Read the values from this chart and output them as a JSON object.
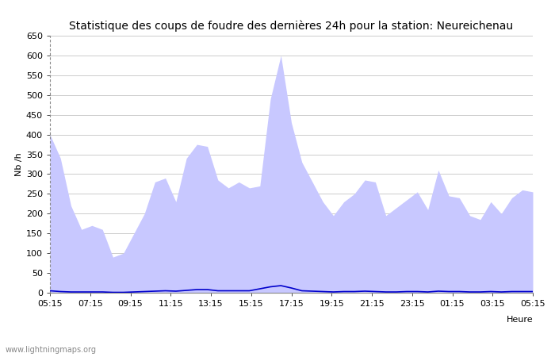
{
  "title": "Statistique des coups de foudre des dernières 24h pour la station: Neureichenau",
  "ylabel": "Nb /h",
  "xlabel": "Heure",
  "watermark": "www.lightningmaps.org",
  "ylim": [
    0,
    650
  ],
  "yticks": [
    0,
    50,
    100,
    150,
    200,
    250,
    300,
    350,
    400,
    450,
    500,
    550,
    600,
    650
  ],
  "xtick_labels": [
    "05:15",
    "07:15",
    "09:15",
    "11:15",
    "13:15",
    "15:15",
    "17:15",
    "19:15",
    "21:15",
    "23:15",
    "01:15",
    "03:15",
    "05:15"
  ],
  "total_foudre_color": "#c8c8ff",
  "detected_color": "#8888ee",
  "mean_line_color": "#0000cc",
  "background_color": "#ffffff",
  "grid_color": "#cccccc",
  "total_foudre": [
    400,
    340,
    220,
    160,
    170,
    160,
    90,
    100,
    150,
    200,
    280,
    290,
    230,
    340,
    375,
    370,
    285,
    265,
    280,
    265,
    270,
    490,
    600,
    430,
    330,
    280,
    230,
    195,
    230,
    250,
    285,
    280,
    195,
    215,
    235,
    255,
    210,
    310,
    245,
    240,
    195,
    185,
    230,
    200,
    240,
    260,
    255
  ],
  "mean_line": [
    5,
    3,
    2,
    2,
    2,
    2,
    1,
    1,
    2,
    3,
    4,
    5,
    4,
    6,
    8,
    8,
    5,
    5,
    5,
    5,
    10,
    15,
    18,
    12,
    5,
    4,
    3,
    2,
    3,
    3,
    4,
    3,
    2,
    2,
    3,
    3,
    2,
    4,
    3,
    3,
    2,
    2,
    3,
    2,
    3,
    3,
    3
  ],
  "title_fontsize": 10,
  "axis_fontsize": 8,
  "tick_fontsize": 8
}
